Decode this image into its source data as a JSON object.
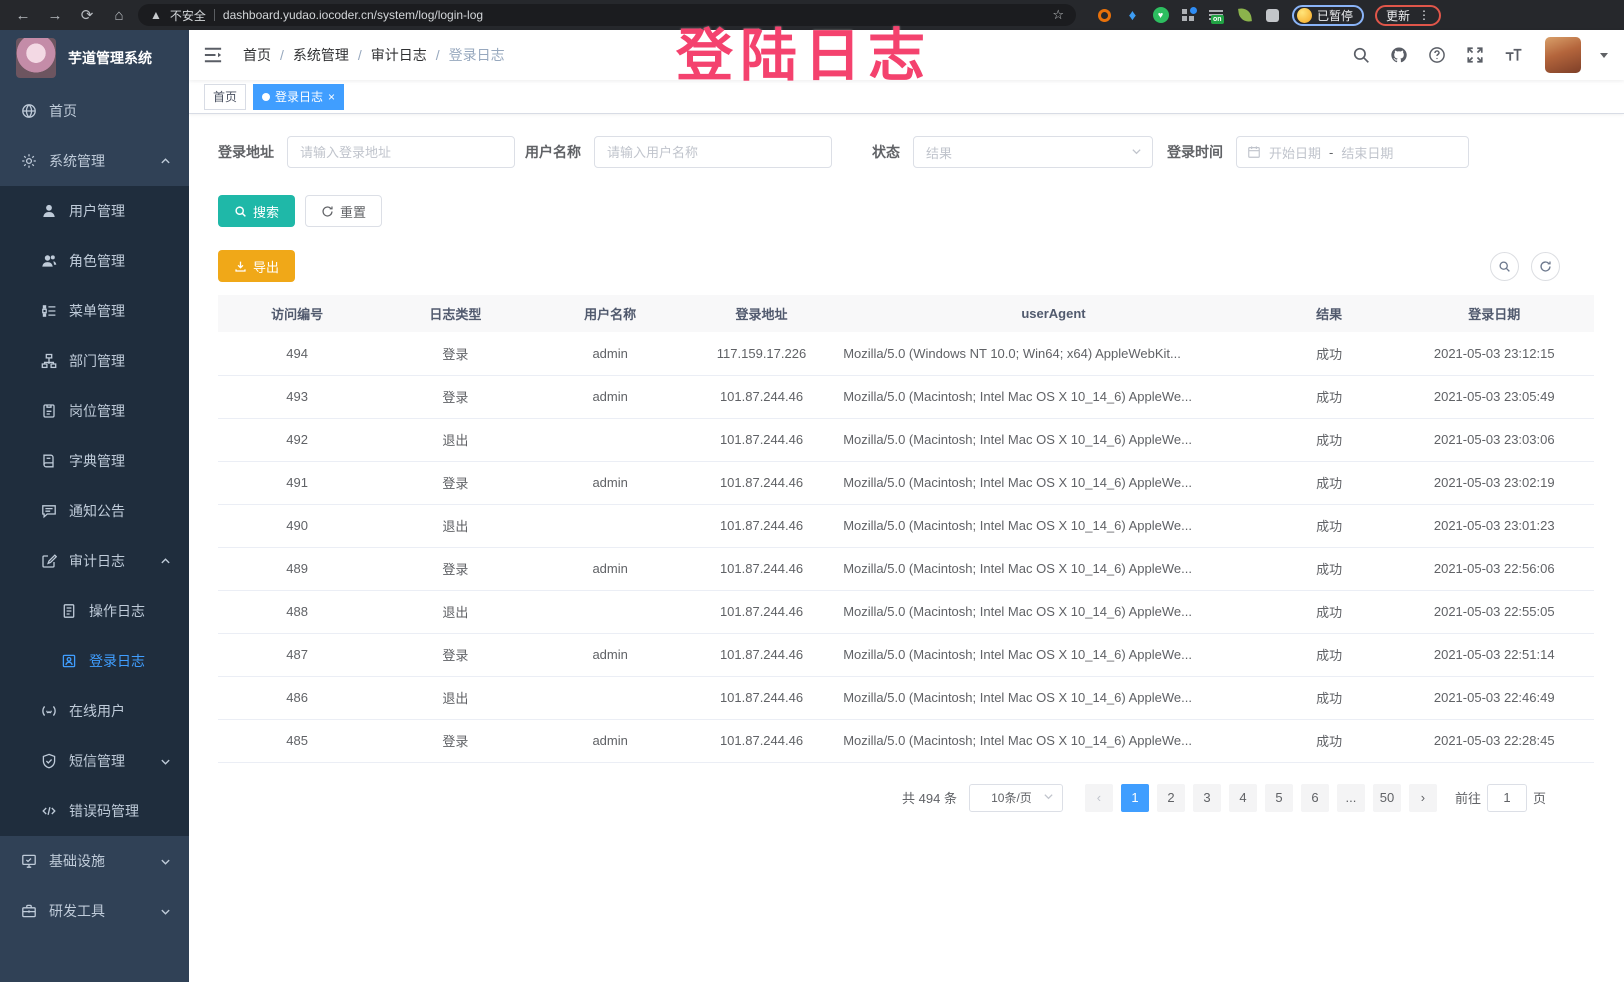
{
  "colors": {
    "accent": "#409eff",
    "search_button": "#1fb8a8",
    "export_button": "#f0a818",
    "watermark": "#f4426e",
    "sidebar_bg": "#304156",
    "submenu_bg": "#1f2d3d"
  },
  "watermark_text": "登陆日志",
  "browser": {
    "security_label": "不安全",
    "url": "dashboard.yudao.iocoder.cn/system/log/login-log",
    "extension_badge": "on",
    "paused_label": "已暂停",
    "update_label": "更新"
  },
  "sidebar": {
    "logo_title": "芋道管理系统",
    "items": [
      {
        "label": "首页",
        "icon": "home",
        "level": 1
      },
      {
        "label": "系统管理",
        "icon": "gear",
        "level": 1,
        "arrow": "up"
      },
      {
        "label": "用户管理",
        "icon": "user",
        "level": 2
      },
      {
        "label": "角色管理",
        "icon": "role",
        "level": 2
      },
      {
        "label": "菜单管理",
        "icon": "menu",
        "level": 2
      },
      {
        "label": "部门管理",
        "icon": "dept",
        "level": 2
      },
      {
        "label": "岗位管理",
        "icon": "post",
        "level": 2
      },
      {
        "label": "字典管理",
        "icon": "dict",
        "level": 2
      },
      {
        "label": "通知公告",
        "icon": "notice",
        "level": 2
      },
      {
        "label": "审计日志",
        "icon": "audit",
        "level": 2,
        "arrow": "up"
      },
      {
        "label": "操作日志",
        "icon": "operate",
        "level": 3
      },
      {
        "label": "登录日志",
        "icon": "login",
        "level": 3,
        "active": true
      },
      {
        "label": "在线用户",
        "icon": "online",
        "level": 2
      },
      {
        "label": "短信管理",
        "icon": "sms",
        "level": 2,
        "arrow": "down"
      },
      {
        "label": "错误码管理",
        "icon": "errcode",
        "level": 2
      },
      {
        "label": "基础设施",
        "icon": "infra",
        "level": 1,
        "arrow": "down"
      },
      {
        "label": "研发工具",
        "icon": "tools",
        "level": 1,
        "arrow": "down"
      }
    ]
  },
  "header": {
    "breadcrumb": [
      "首页",
      "系统管理",
      "审计日志",
      "登录日志"
    ]
  },
  "tags": {
    "home_label": "首页",
    "active_label": "登录日志",
    "close_glyph": "×"
  },
  "filters": {
    "address_label": "登录地址",
    "address_placeholder": "请输入登录地址",
    "username_label": "用户名称",
    "username_placeholder": "请输入用户名称",
    "status_label": "状态",
    "status_placeholder": "结果",
    "time_label": "登录时间",
    "start_placeholder": "开始日期",
    "range_separator": "-",
    "end_placeholder": "结束日期",
    "search_label": "搜索",
    "reset_label": "重置",
    "export_label": "导出"
  },
  "table": {
    "headers": [
      "访问编号",
      "日志类型",
      "用户名称",
      "登录地址",
      "userAgent",
      "结果",
      "登录日期"
    ],
    "rows": [
      {
        "id": "494",
        "type": "登录",
        "user": "admin",
        "address": "117.159.17.226",
        "agent": "Mozilla/5.0 (Windows NT 10.0; Win64; x64) AppleWebKit...",
        "result": "成功",
        "date": "2021-05-03 23:12:15"
      },
      {
        "id": "493",
        "type": "登录",
        "user": "admin",
        "address": "101.87.244.46",
        "agent": "Mozilla/5.0 (Macintosh; Intel Mac OS X 10_14_6) AppleWe...",
        "result": "成功",
        "date": "2021-05-03 23:05:49"
      },
      {
        "id": "492",
        "type": "退出",
        "user": "",
        "address": "101.87.244.46",
        "agent": "Mozilla/5.0 (Macintosh; Intel Mac OS X 10_14_6) AppleWe...",
        "result": "成功",
        "date": "2021-05-03 23:03:06"
      },
      {
        "id": "491",
        "type": "登录",
        "user": "admin",
        "address": "101.87.244.46",
        "agent": "Mozilla/5.0 (Macintosh; Intel Mac OS X 10_14_6) AppleWe...",
        "result": "成功",
        "date": "2021-05-03 23:02:19"
      },
      {
        "id": "490",
        "type": "退出",
        "user": "",
        "address": "101.87.244.46",
        "agent": "Mozilla/5.0 (Macintosh; Intel Mac OS X 10_14_6) AppleWe...",
        "result": "成功",
        "date": "2021-05-03 23:01:23"
      },
      {
        "id": "489",
        "type": "登录",
        "user": "admin",
        "address": "101.87.244.46",
        "agent": "Mozilla/5.0 (Macintosh; Intel Mac OS X 10_14_6) AppleWe...",
        "result": "成功",
        "date": "2021-05-03 22:56:06"
      },
      {
        "id": "488",
        "type": "退出",
        "user": "",
        "address": "101.87.244.46",
        "agent": "Mozilla/5.0 (Macintosh; Intel Mac OS X 10_14_6) AppleWe...",
        "result": "成功",
        "date": "2021-05-03 22:55:05"
      },
      {
        "id": "487",
        "type": "登录",
        "user": "admin",
        "address": "101.87.244.46",
        "agent": "Mozilla/5.0 (Macintosh; Intel Mac OS X 10_14_6) AppleWe...",
        "result": "成功",
        "date": "2021-05-03 22:51:14"
      },
      {
        "id": "486",
        "type": "退出",
        "user": "",
        "address": "101.87.244.46",
        "agent": "Mozilla/5.0 (Macintosh; Intel Mac OS X 10_14_6) AppleWe...",
        "result": "成功",
        "date": "2021-05-03 22:46:49"
      },
      {
        "id": "485",
        "type": "登录",
        "user": "admin",
        "address": "101.87.244.46",
        "agent": "Mozilla/5.0 (Macintosh; Intel Mac OS X 10_14_6) AppleWe...",
        "result": "成功",
        "date": "2021-05-03 22:28:45"
      }
    ]
  },
  "pagination": {
    "total_text": "共 494 条",
    "page_size": "10条/页",
    "pages": [
      "1",
      "2",
      "3",
      "4",
      "5",
      "6",
      "...",
      "50"
    ],
    "active_page": "1",
    "prev_glyph": "‹",
    "next_glyph": "›",
    "goto_label": "前往",
    "goto_value": "1",
    "page_label": "页"
  }
}
